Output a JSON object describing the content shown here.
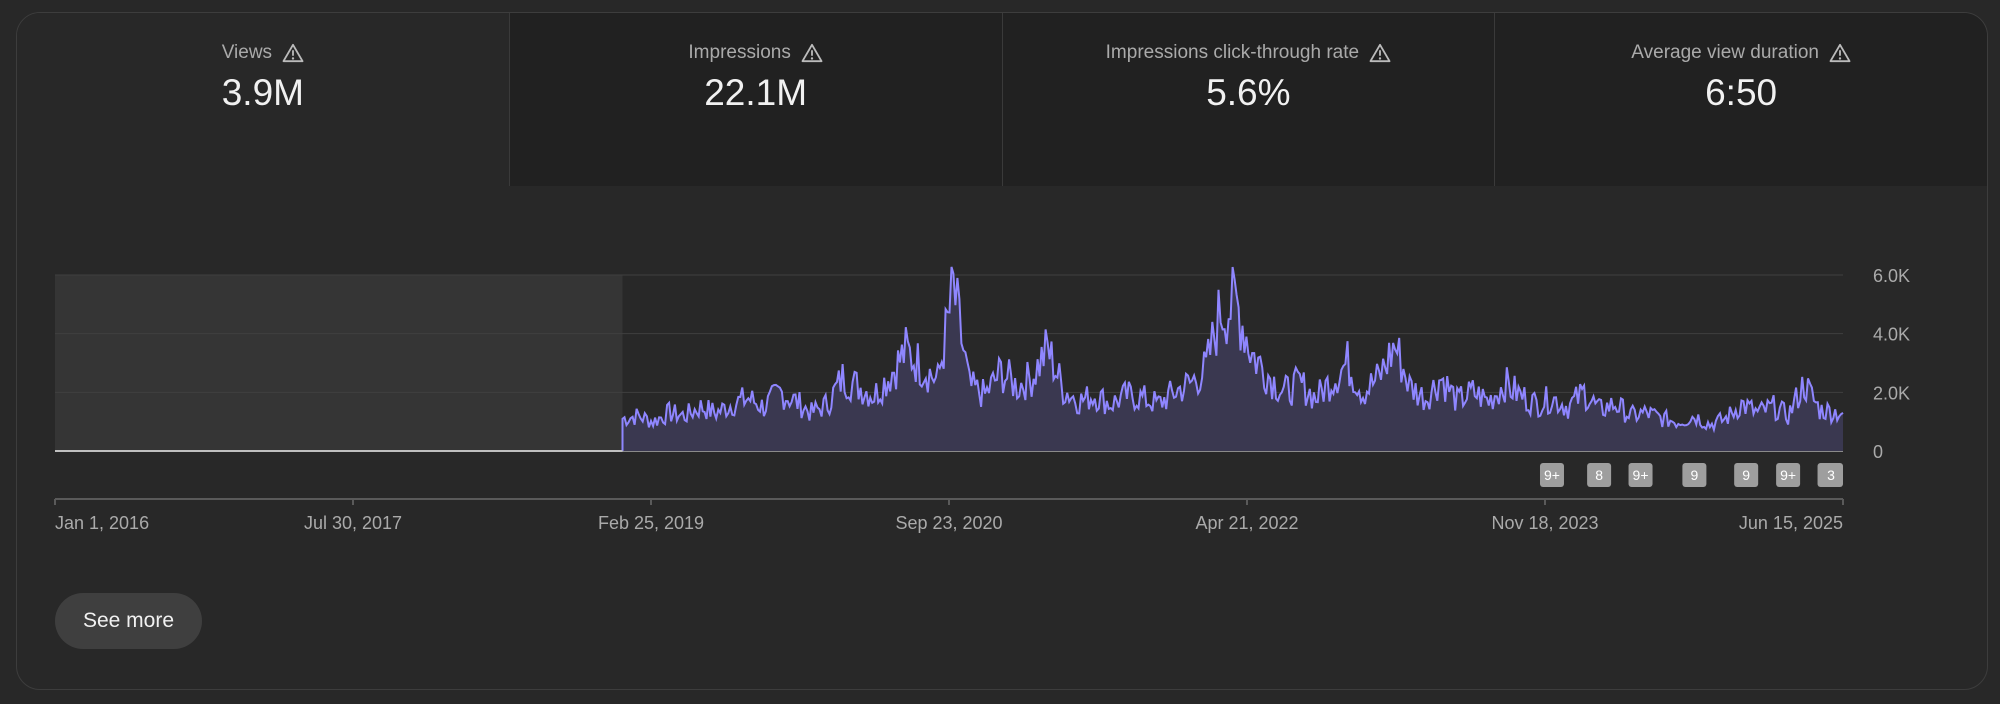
{
  "metrics": [
    {
      "label": "Views",
      "value": "3.9M",
      "selected": true,
      "icon": "warning-icon"
    },
    {
      "label": "Impressions",
      "value": "22.1M",
      "selected": false,
      "icon": "warning-icon"
    },
    {
      "label": "Impressions click-through rate",
      "value": "5.6%",
      "selected": false,
      "icon": "warning-icon"
    },
    {
      "label": "Average view duration",
      "value": "6:50",
      "selected": false,
      "icon": "warning-icon"
    }
  ],
  "chart_data": {
    "type": "area",
    "x_start": "2016-01-01",
    "x_end": "2025-06-15",
    "data_start": "2019-01-01",
    "ylim": [
      0,
      6000
    ],
    "y_ticks": [
      0,
      2000,
      4000,
      6000
    ],
    "y_tick_labels": [
      "0",
      "2.0K",
      "4.0K",
      "6.0K"
    ],
    "x_tick_labels": [
      "Jan 1, 2016",
      "Jul 30, 2017",
      "Feb 25, 2019",
      "Sep 23, 2020",
      "Apr 21, 2022",
      "Nov 18, 2023",
      "Jun 15, 2025"
    ],
    "grid": true,
    "series_color": "#8f86ff",
    "series": [
      {
        "values_by_date": [
          [
            "2019-01-01",
            1100
          ],
          [
            "2019-02-01",
            1200
          ],
          [
            "2019-03-01",
            1000
          ],
          [
            "2019-04-01",
            1300
          ],
          [
            "2019-05-01",
            1200
          ],
          [
            "2019-06-01",
            1500
          ],
          [
            "2019-07-01",
            1300
          ],
          [
            "2019-08-01",
            1600
          ],
          [
            "2019-09-01",
            1800
          ],
          [
            "2019-10-01",
            1500
          ],
          [
            "2019-11-01",
            2000
          ],
          [
            "2019-12-01",
            1700
          ],
          [
            "2020-01-01",
            1300
          ],
          [
            "2020-02-01",
            1600
          ],
          [
            "2020-03-01",
            2500
          ],
          [
            "2020-04-01",
            2200
          ],
          [
            "2020-05-01",
            1900
          ],
          [
            "2020-06-01",
            2600
          ],
          [
            "2020-07-01",
            3400
          ],
          [
            "2020-08-01",
            2900
          ],
          [
            "2020-09-01",
            2400
          ],
          [
            "2020-10-01",
            5500
          ],
          [
            "2020-11-01",
            2200
          ],
          [
            "2020-12-01",
            1900
          ],
          [
            "2021-01-01",
            2700
          ],
          [
            "2021-02-01",
            2200
          ],
          [
            "2021-03-01",
            2500
          ],
          [
            "2021-04-01",
            3500
          ],
          [
            "2021-05-01",
            2100
          ],
          [
            "2021-06-01",
            1700
          ],
          [
            "2021-07-01",
            1900
          ],
          [
            "2021-08-01",
            1600
          ],
          [
            "2021-09-01",
            1900
          ],
          [
            "2021-10-01",
            1800
          ],
          [
            "2021-11-01",
            1600
          ],
          [
            "2021-12-01",
            2000
          ],
          [
            "2022-01-01",
            2300
          ],
          [
            "2022-02-01",
            2800
          ],
          [
            "2022-03-01",
            4800
          ],
          [
            "2022-04-01",
            5000
          ],
          [
            "2022-05-01",
            3300
          ],
          [
            "2022-06-01",
            2600
          ],
          [
            "2022-07-01",
            2000
          ],
          [
            "2022-08-01",
            2300
          ],
          [
            "2022-09-01",
            1800
          ],
          [
            "2022-10-01",
            2400
          ],
          [
            "2022-11-01",
            3000
          ],
          [
            "2022-12-01",
            2000
          ],
          [
            "2023-01-01",
            2500
          ],
          [
            "2023-02-01",
            3600
          ],
          [
            "2023-03-01",
            2200
          ],
          [
            "2023-04-01",
            1800
          ],
          [
            "2023-05-01",
            2500
          ],
          [
            "2023-06-01",
            1700
          ],
          [
            "2023-07-01",
            2000
          ],
          [
            "2023-08-01",
            1700
          ],
          [
            "2023-09-01",
            2300
          ],
          [
            "2023-10-01",
            1900
          ],
          [
            "2023-11-01",
            1600
          ],
          [
            "2023-12-01",
            1800
          ],
          [
            "2024-01-01",
            1500
          ],
          [
            "2024-02-01",
            2000
          ],
          [
            "2024-03-01",
            1400
          ],
          [
            "2024-04-01",
            1600
          ],
          [
            "2024-05-01",
            1200
          ],
          [
            "2024-06-01",
            1300
          ],
          [
            "2024-07-01",
            1100
          ],
          [
            "2024-08-01",
            1000
          ],
          [
            "2024-09-01",
            1200
          ],
          [
            "2024-10-01",
            900
          ],
          [
            "2024-11-01",
            1100
          ],
          [
            "2024-12-01",
            1600
          ],
          [
            "2025-01-01",
            1300
          ],
          [
            "2025-02-01",
            1500
          ],
          [
            "2025-03-01",
            1200
          ],
          [
            "2025-04-01",
            2300
          ],
          [
            "2025-05-01",
            1400
          ],
          [
            "2025-06-15",
            1300
          ]
        ]
      }
    ],
    "annotations": [
      {
        "label": "9+",
        "date": "2023-12-01"
      },
      {
        "label": "8",
        "date": "2024-03-01"
      },
      {
        "label": "9+",
        "date": "2024-05-20"
      },
      {
        "label": "9",
        "date": "2024-09-01"
      },
      {
        "label": "9",
        "date": "2024-12-10"
      },
      {
        "label": "9+",
        "date": "2025-03-01"
      },
      {
        "label": "9+",
        "date": "2025-05-20"
      },
      {
        "label": "3",
        "date": "2025-08-20"
      }
    ]
  },
  "see_more_label": "See more"
}
